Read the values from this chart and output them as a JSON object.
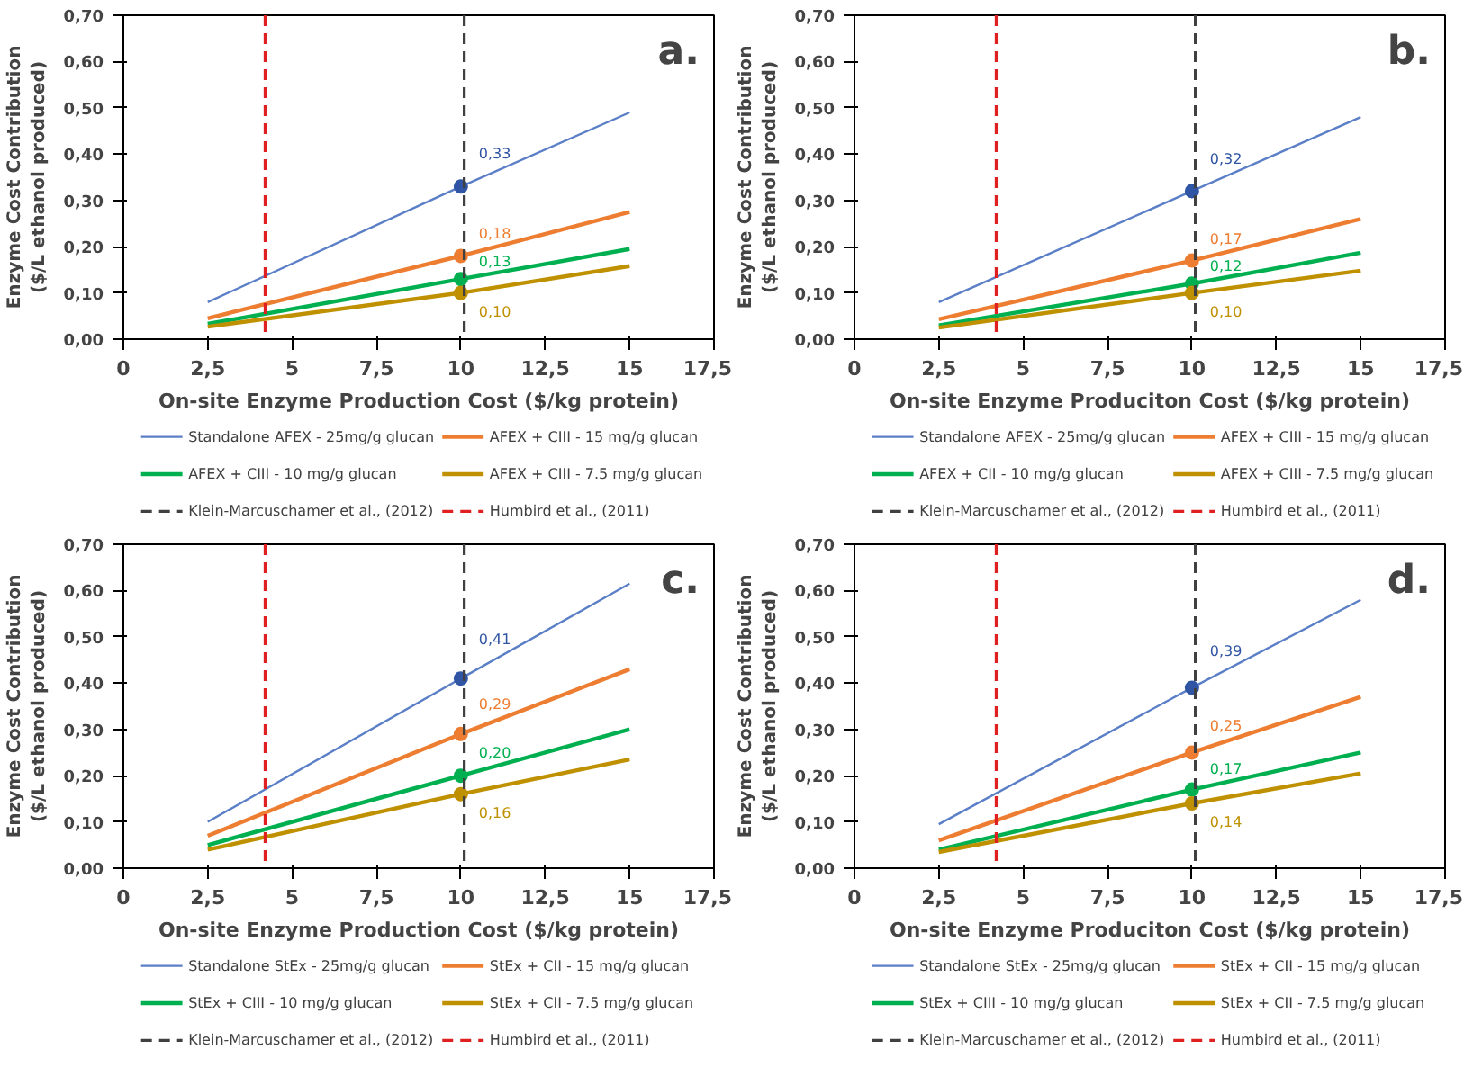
{
  "chart_data": [
    {
      "type": "line",
      "xlabel": "On-site Enzyme Production Cost ($/kg protein)",
      "ylabel": "Enzyme Cost Contribution\n($/L ethanol produced)",
      "annotations": [
        "a."
      ],
      "x": [
        2.5,
        10,
        15
      ],
      "series": [
        {
          "name": "Standalone AFEX - 25mg/g glucan",
          "color": "#5b7fc7",
          "values": [
            0.08,
            0.33,
            0.49
          ]
        },
        {
          "name": "AFEX + CIII - 15 mg/g glucan",
          "color": "#ed7d31",
          "values": [
            0.045,
            0.18,
            0.275
          ]
        },
        {
          "name": "AFEX + CIII - 10 mg/g glucan",
          "color": "#00b050",
          "values": [
            0.033,
            0.13,
            0.195
          ]
        },
        {
          "name": "AFEX + CIII - 7.5 mg/g glucan",
          "color": "#bf9000",
          "values": [
            0.027,
            0.1,
            0.158
          ]
        },
        {
          "type": "scatter",
          "color": "#2f55a4",
          "values": [
            null,
            0.33,
            null
          ],
          "value_labels": [
            null,
            "0,33",
            null
          ]
        },
        {
          "type": "scatter",
          "color": "#ed7d31",
          "values": [
            null,
            0.18,
            null
          ],
          "value_labels": [
            null,
            "0,18",
            null
          ]
        },
        {
          "type": "scatter",
          "color": "#00b050",
          "values": [
            null,
            0.13,
            null
          ],
          "value_labels": [
            null,
            "0,13",
            null
          ]
        },
        {
          "type": "scatter",
          "color": "#bf9000",
          "values": [
            null,
            0.1,
            null
          ],
          "value_labels": [
            null,
            "0,10",
            null
          ]
        }
      ],
      "ref_lines": [
        {
          "axis": "x",
          "value": 10.1,
          "label": "Klein-Marcuschamer et al., (2012)",
          "color": "#404040",
          "line_style": "dashed"
        },
        {
          "axis": "x",
          "value": 4.2,
          "label": "Humbird et al., (2011)",
          "color": "#e02020",
          "line_style": "dashed"
        }
      ],
      "xlim": [
        0,
        17.5
      ],
      "ylim": [
        0,
        0.7
      ],
      "xticks": [
        0,
        {
          "value": 2.5,
          "label": "2,5"
        },
        5,
        {
          "value": 7.5,
          "label": "7,5"
        },
        10,
        {
          "value": 12.5,
          "label": "12,5"
        },
        15,
        {
          "value": 17.5,
          "label": "17,5"
        }
      ],
      "yticks": [
        {
          "value": 0,
          "label": "0,00"
        },
        {
          "value": 0.1,
          "label": "0,10"
        },
        {
          "value": 0.2,
          "label": "0,20"
        },
        {
          "value": 0.3,
          "label": "0,30"
        },
        {
          "value": 0.4,
          "label": "0,40"
        },
        {
          "value": 0.5,
          "label": "0,50"
        },
        {
          "value": 0.6,
          "label": "0,60"
        },
        {
          "value": 0.7,
          "label": "0,70"
        }
      ],
      "grid": false,
      "legend": "bottom"
    },
    {
      "type": "line",
      "xlabel": "On-site Enzyme Produciton Cost ($/kg protein)",
      "ylabel": "Enzyme Cost Contribution\n($/L ethanol produced)",
      "annotations": [
        "b."
      ],
      "x": [
        2.5,
        10,
        15
      ],
      "series": [
        {
          "name": "Standalone AFEX - 25mg/g glucan",
          "color": "#5b7fc7",
          "values": [
            0.08,
            0.32,
            0.48
          ]
        },
        {
          "name": "AFEX + CIII - 15 mg/g glucan",
          "color": "#ed7d31",
          "values": [
            0.043,
            0.17,
            0.26
          ]
        },
        {
          "name": "AFEX + CII - 10 mg/g glucan",
          "color": "#00b050",
          "values": [
            0.03,
            0.12,
            0.187
          ]
        },
        {
          "name": "AFEX + CIII - 7.5 mg/g glucan",
          "color": "#bf9000",
          "values": [
            0.025,
            0.1,
            0.148
          ]
        },
        {
          "type": "scatter",
          "color": "#2f55a4",
          "values": [
            null,
            0.32,
            null
          ],
          "value_labels": [
            null,
            "0,32",
            null
          ]
        },
        {
          "type": "scatter",
          "color": "#ed7d31",
          "values": [
            null,
            0.17,
            null
          ],
          "value_labels": [
            null,
            "0,17",
            null
          ]
        },
        {
          "type": "scatter",
          "color": "#00b050",
          "values": [
            null,
            0.12,
            null
          ],
          "value_labels": [
            null,
            "0,12",
            null
          ]
        },
        {
          "type": "scatter",
          "color": "#bf9000",
          "values": [
            null,
            0.1,
            null
          ],
          "value_labels": [
            null,
            "0,10",
            null
          ]
        }
      ],
      "ref_lines": [
        {
          "axis": "x",
          "value": 10.1,
          "label": "Klein-Marcuschamer et al., (2012)",
          "color": "#404040",
          "line_style": "dashed"
        },
        {
          "axis": "x",
          "value": 4.2,
          "label": "Humbird et al., (2011)",
          "color": "#e02020",
          "line_style": "dashed"
        }
      ],
      "xlim": [
        0,
        17.5
      ],
      "ylim": [
        0,
        0.7
      ],
      "xticks": [
        0,
        {
          "value": 2.5,
          "label": "2,5"
        },
        5,
        {
          "value": 7.5,
          "label": "7,5"
        },
        10,
        {
          "value": 12.5,
          "label": "12,5"
        },
        15,
        {
          "value": 17.5,
          "label": "17,5"
        }
      ],
      "yticks": [
        {
          "value": 0,
          "label": "0,00"
        },
        {
          "value": 0.1,
          "label": "0,10"
        },
        {
          "value": 0.2,
          "label": "0,20"
        },
        {
          "value": 0.3,
          "label": "0,30"
        },
        {
          "value": 0.4,
          "label": "0,40"
        },
        {
          "value": 0.5,
          "label": "0,50"
        },
        {
          "value": 0.6,
          "label": "0,60"
        },
        {
          "value": 0.7,
          "label": "0,70"
        }
      ],
      "grid": false,
      "legend": "bottom"
    },
    {
      "type": "line",
      "xlabel": "On-site Enzyme Production Cost ($/kg protein)",
      "ylabel": "Enzyme Cost Contribution\n($/L ethanol produced)",
      "annotations": [
        "c."
      ],
      "x": [
        2.5,
        10,
        15
      ],
      "series": [
        {
          "name": "Standalone StEx - 25mg/g glucan",
          "color": "#5b7fc7",
          "values": [
            0.1,
            0.41,
            0.615
          ]
        },
        {
          "name": "StEx + CII - 15 mg/g glucan",
          "color": "#ed7d31",
          "values": [
            0.07,
            0.29,
            0.43
          ]
        },
        {
          "name": "StEx + CIII - 10 mg/g glucan",
          "color": "#00b050",
          "values": [
            0.05,
            0.2,
            0.3
          ]
        },
        {
          "name": "StEx + CII - 7.5 mg/g glucan",
          "color": "#bf9000",
          "values": [
            0.04,
            0.16,
            0.235
          ]
        },
        {
          "type": "scatter",
          "color": "#2f55a4",
          "values": [
            null,
            0.41,
            null
          ],
          "value_labels": [
            null,
            "0,41",
            null
          ]
        },
        {
          "type": "scatter",
          "color": "#ed7d31",
          "values": [
            null,
            0.29,
            null
          ],
          "value_labels": [
            null,
            "0,29",
            null
          ]
        },
        {
          "type": "scatter",
          "color": "#00b050",
          "values": [
            null,
            0.2,
            null
          ],
          "value_labels": [
            null,
            "0,20",
            null
          ]
        },
        {
          "type": "scatter",
          "color": "#bf9000",
          "values": [
            null,
            0.16,
            null
          ],
          "value_labels": [
            null,
            "0,16",
            null
          ]
        }
      ],
      "ref_lines": [
        {
          "axis": "x",
          "value": 10.1,
          "label": "Klein-Marcuschamer et al., (2012)",
          "color": "#404040",
          "line_style": "dashed"
        },
        {
          "axis": "x",
          "value": 4.2,
          "label": "Humbird et al., (2011)",
          "color": "#e02020",
          "line_style": "dashed"
        }
      ],
      "xlim": [
        0,
        17.5
      ],
      "ylim": [
        0,
        0.7
      ],
      "xticks": [
        0,
        {
          "value": 2.5,
          "label": "2,5"
        },
        5,
        {
          "value": 7.5,
          "label": "7,5"
        },
        10,
        {
          "value": 12.5,
          "label": "12,5"
        },
        15,
        {
          "value": 17.5,
          "label": "17,5"
        }
      ],
      "yticks": [
        {
          "value": 0,
          "label": "0,00"
        },
        {
          "value": 0.1,
          "label": "0,10"
        },
        {
          "value": 0.2,
          "label": "0,20"
        },
        {
          "value": 0.3,
          "label": "0,30"
        },
        {
          "value": 0.4,
          "label": "0,40"
        },
        {
          "value": 0.5,
          "label": "0,50"
        },
        {
          "value": 0.6,
          "label": "0,60"
        },
        {
          "value": 0.7,
          "label": "0,70"
        }
      ],
      "grid": false,
      "legend": "bottom"
    },
    {
      "type": "line",
      "xlabel": "On-site Enzyme Produciton Cost ($/kg protein)",
      "ylabel": "Enzyme Cost Contribution\n($/L ethanol produced)",
      "annotations": [
        "d."
      ],
      "x": [
        2.5,
        10,
        15
      ],
      "series": [
        {
          "name": "Standalone StEx - 25mg/g glucan",
          "color": "#5b7fc7",
          "values": [
            0.095,
            0.39,
            0.58
          ]
        },
        {
          "name": "StEx + CII - 15 mg/g glucan",
          "color": "#ed7d31",
          "values": [
            0.06,
            0.25,
            0.37
          ]
        },
        {
          "name": "StEx + CIII - 10 mg/g glucan",
          "color": "#00b050",
          "values": [
            0.04,
            0.17,
            0.25
          ]
        },
        {
          "name": "StEx + CII - 7.5 mg/g glucan",
          "color": "#bf9000",
          "values": [
            0.035,
            0.14,
            0.205
          ]
        },
        {
          "type": "scatter",
          "color": "#2f55a4",
          "values": [
            null,
            0.39,
            null
          ],
          "value_labels": [
            null,
            "0,39",
            null
          ]
        },
        {
          "type": "scatter",
          "color": "#ed7d31",
          "values": [
            null,
            0.25,
            null
          ],
          "value_labels": [
            null,
            "0,25",
            null
          ]
        },
        {
          "type": "scatter",
          "color": "#00b050",
          "values": [
            null,
            0.17,
            null
          ],
          "value_labels": [
            null,
            "0,17",
            null
          ]
        },
        {
          "type": "scatter",
          "color": "#bf9000",
          "values": [
            null,
            0.14,
            null
          ],
          "value_labels": [
            null,
            "0,14",
            null
          ]
        }
      ],
      "ref_lines": [
        {
          "axis": "x",
          "value": 10.1,
          "label": "Klein-Marcuschamer et al., (2012)",
          "color": "#404040",
          "line_style": "dashed"
        },
        {
          "axis": "x",
          "value": 4.2,
          "label": "Humbird et al., (2011)",
          "color": "#e02020",
          "line_style": "dashed"
        }
      ],
      "xlim": [
        0,
        17.5
      ],
      "ylim": [
        0,
        0.7
      ],
      "xticks": [
        0,
        {
          "value": 2.5,
          "label": "2,5"
        },
        5,
        {
          "value": 7.5,
          "label": "7,5"
        },
        10,
        {
          "value": 12.5,
          "label": "12,5"
        },
        15,
        {
          "value": 17.5,
          "label": "17,5"
        }
      ],
      "yticks": [
        {
          "value": 0,
          "label": "0,00"
        },
        {
          "value": 0.1,
          "label": "0,10"
        },
        {
          "value": 0.2,
          "label": "0,20"
        },
        {
          "value": 0.3,
          "label": "0,30"
        },
        {
          "value": 0.4,
          "label": "0,40"
        },
        {
          "value": 0.5,
          "label": "0,50"
        },
        {
          "value": 0.6,
          "label": "0,60"
        },
        {
          "value": 0.7,
          "label": "0,70"
        }
      ],
      "grid": false,
      "legend": "bottom"
    }
  ]
}
